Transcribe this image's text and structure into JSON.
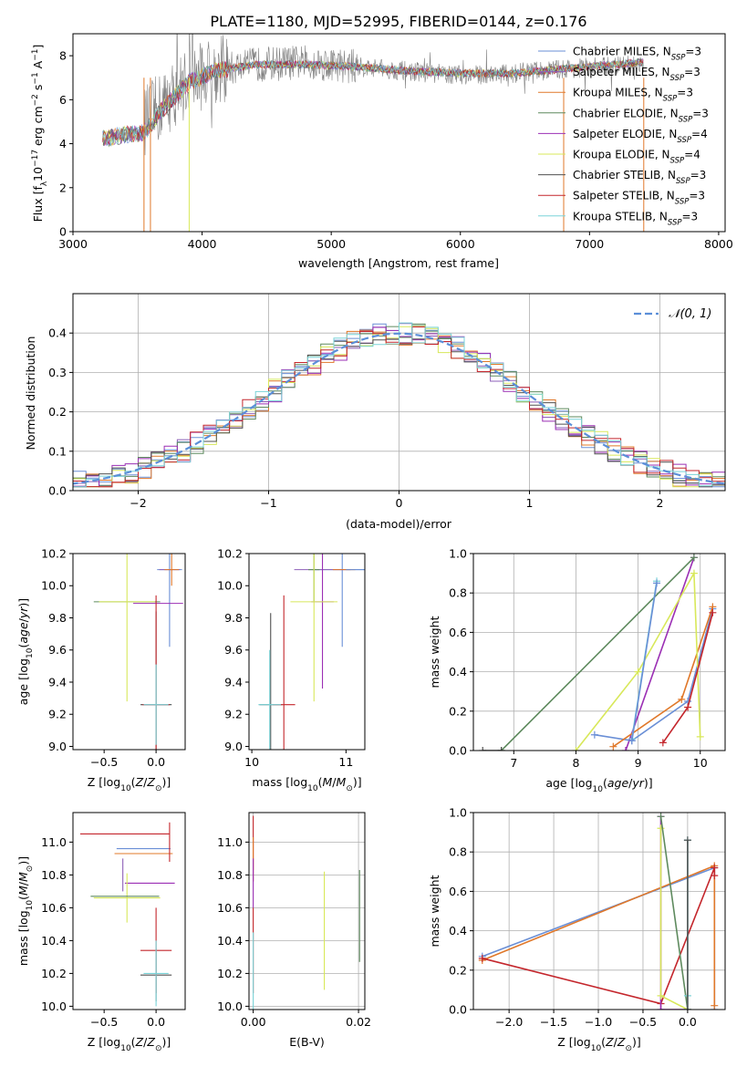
{
  "figure": {
    "title": "PLATE=1180, MJD=52995, FIBERID=0144, z=0.176",
    "fit_names": [
      "Chabrier MILES",
      "Salpeter MILES",
      "Kroupa MILES",
      "Chabrier ELODIE",
      "Salpeter ELODIE",
      "Kroupa ELODIE",
      "Chabrier STELIB",
      "Salpeter STELIB",
      "Kroupa STELIB"
    ],
    "fit_nssp": [
      "3",
      "3",
      "3",
      "3",
      "4",
      "4",
      "3",
      "3",
      "3"
    ],
    "fit_colors": [
      "#6a8fd6",
      "#8e5fb8",
      "#e0782a",
      "#5e8a5e",
      "#9b2fb4",
      "#d8e85a",
      "#505050",
      "#c4262c",
      "#7ad4d8"
    ]
  },
  "chart_data": [
    {
      "type": "line",
      "id": "spectrum",
      "xlabel": "wavelength [Angstrom, rest frame]",
      "ylabel": "Flux [f_λ 10^-17 erg cm^-2 s^-1 A^-1]",
      "xlim": [
        3000,
        8050
      ],
      "ylim": [
        0,
        9
      ],
      "xticks": [
        3000,
        4000,
        5000,
        6000,
        7000,
        8000
      ],
      "yticks": [
        0,
        2,
        4,
        6,
        8
      ],
      "legend_position": "right",
      "data_color": "#808080",
      "data_range": [
        3550,
        7420
      ],
      "data_continuum": [
        [
          3550,
          5.0
        ],
        [
          3700,
          5.8
        ],
        [
          3900,
          6.9
        ],
        [
          4100,
          7.3
        ],
        [
          4400,
          7.6
        ],
        [
          4800,
          7.7
        ],
        [
          5200,
          7.5
        ],
        [
          5600,
          7.3
        ],
        [
          6000,
          7.1
        ],
        [
          6400,
          7.2
        ],
        [
          6800,
          7.4
        ],
        [
          7400,
          7.6
        ]
      ],
      "model_range": [
        3230,
        7420
      ],
      "model_continuum": [
        [
          3230,
          4.2
        ],
        [
          3400,
          4.4
        ],
        [
          3550,
          4.5
        ],
        [
          3700,
          5.6
        ],
        [
          3900,
          6.8
        ],
        [
          4100,
          7.3
        ],
        [
          4400,
          7.6
        ],
        [
          4800,
          7.6
        ],
        [
          5200,
          7.5
        ],
        [
          5600,
          7.3
        ],
        [
          6000,
          7.2
        ],
        [
          6400,
          7.2
        ],
        [
          6800,
          7.4
        ],
        [
          7400,
          7.7
        ]
      ],
      "model_drops": [
        3550,
        3600,
        3900,
        6800,
        7420
      ]
    },
    {
      "type": "step",
      "id": "residuals",
      "xlabel": "(data-model)/error",
      "ylabel": "Normed distribution",
      "xlim": [
        -2.5,
        2.5
      ],
      "ylim": [
        0,
        0.5
      ],
      "xticks": [
        -2,
        -1,
        0,
        1,
        2
      ],
      "yticks": [
        0.0,
        0.1,
        0.2,
        0.3,
        0.4
      ],
      "grid": true,
      "bin_width": 0.1,
      "reference_label": "𝒩(0, 1)",
      "reference_color": "#5b8fd8",
      "legend_position": "top-right"
    },
    {
      "type": "scatter",
      "id": "age_vs_z",
      "xlabel": "Z [log10(Z/Z☉)]",
      "ylabel": "age [log10(age/yr)]",
      "xlim": [
        -0.8,
        0.28
      ],
      "ylim": [
        8.98,
        10.2
      ],
      "xticks": [
        -0.5,
        0.0
      ],
      "yticks": [
        9.0,
        9.2,
        9.4,
        9.6,
        9.8,
        10.0,
        10.2
      ],
      "points": [
        {
          "c": 0,
          "x": 0.13,
          "y": 10.1,
          "xerr": 0.12,
          "yerr": 0.48
        },
        {
          "c": 1,
          "x": 0.13,
          "y": 10.1,
          "xerr": 0.1,
          "yerr": 0.0
        },
        {
          "c": 2,
          "x": 0.15,
          "y": 10.1,
          "xerr": 0.07,
          "yerr": 0.0
        },
        {
          "c": 3,
          "x": -0.28,
          "y": 9.9,
          "xerr": 0.32,
          "yerr": 0.0
        },
        {
          "c": 4,
          "x": 0.02,
          "y": 9.89,
          "xerr": 0.24,
          "yerr": 0.0
        },
        {
          "c": 5,
          "x": -0.28,
          "y": 9.9,
          "xerr": 0.27,
          "yerr": 0.62
        },
        {
          "c": 6,
          "x": 0.0,
          "y": 9.26,
          "xerr": 0.15,
          "yerr": 0.58
        },
        {
          "c": 7,
          "x": 0.0,
          "y": 9.26,
          "xerr": 0.13,
          "yerr": 0.68
        },
        {
          "c": 8,
          "x": 0.0,
          "y": 9.26,
          "xerr": 0.12,
          "yerr": 0.25
        },
        {
          "c": 2,
          "x": 0.15,
          "y": 10.1,
          "xerr": 0.0,
          "yerr": 0.1
        }
      ]
    },
    {
      "type": "scatter",
      "id": "age_vs_mass",
      "xlabel": "mass [log10(M/M☉)]",
      "ylabel": "",
      "xlim": [
        9.97,
        11.2
      ],
      "ylim": [
        8.98,
        10.2
      ],
      "xticks": [
        10,
        11
      ],
      "yticks": [
        9.0,
        9.2,
        9.4,
        9.6,
        9.8,
        10.0,
        10.2
      ],
      "points": [
        {
          "c": 0,
          "x": 10.96,
          "y": 10.1,
          "xerr": 0.3,
          "yerr": 0.48
        },
        {
          "c": 1,
          "x": 10.75,
          "y": 10.1,
          "xerr": 0.3,
          "yerr": 0.0
        },
        {
          "c": 2,
          "x": 10.98,
          "y": 10.1,
          "xerr": 0.12,
          "yerr": 0.0
        },
        {
          "c": 3,
          "x": 10.66,
          "y": 10.1,
          "xerr": 0.06,
          "yerr": 0.2
        },
        {
          "c": 4,
          "x": 10.75,
          "y": 9.9,
          "xerr": 0.12,
          "yerr": 0.54
        },
        {
          "c": 5,
          "x": 10.66,
          "y": 9.9,
          "xerr": 0.25,
          "yerr": 0.62
        },
        {
          "c": 6,
          "x": 10.2,
          "y": 9.26,
          "xerr": 0.12,
          "yerr": 0.57
        },
        {
          "c": 7,
          "x": 10.34,
          "y": 9.26,
          "xerr": 0.12,
          "yerr": 0.68
        },
        {
          "c": 8,
          "x": 10.19,
          "y": 9.26,
          "xerr": 0.12,
          "yerr": 0.34
        },
        {
          "c": 0,
          "x": 11.1,
          "y": 10.1,
          "xerr": 0.1,
          "yerr": 0.0
        }
      ]
    },
    {
      "type": "line",
      "id": "weight_vs_age",
      "xlabel": "age [log10(age/yr)]",
      "ylabel": "mass weight",
      "xlim": [
        6.35,
        10.4
      ],
      "ylim": [
        0,
        1
      ],
      "xticks": [
        7,
        8,
        9,
        10
      ],
      "yticks": [
        0.0,
        0.2,
        0.4,
        0.6,
        0.8,
        1.0
      ],
      "grid": true,
      "series": [
        {
          "c": 0,
          "x": [
            8.3,
            8.9,
            9.8,
            10.2
          ],
          "y": [
            0.08,
            0.05,
            0.25,
            0.72
          ]
        },
        {
          "c": 4,
          "x": [
            8.8,
            9.9
          ],
          "y": [
            0.0,
            0.98
          ]
        },
        {
          "c": 2,
          "x": [
            8.6,
            9.7,
            10.2
          ],
          "y": [
            0.02,
            0.26,
            0.73
          ]
        },
        {
          "c": 5,
          "x": [
            8.0,
            9.0,
            9.9,
            10.0
          ],
          "y": [
            0.0,
            0.4,
            0.9,
            0.07
          ]
        },
        {
          "c": 3,
          "x": [
            6.8,
            9.9
          ],
          "y": [
            0.0,
            0.98
          ]
        },
        {
          "c": 6,
          "x": [
            6.5,
            6.8
          ],
          "y": [
            0.0,
            0.0
          ]
        },
        {
          "c": 8,
          "x": [
            8.9,
            9.3
          ],
          "y": [
            0.06,
            0.86
          ]
        },
        {
          "c": 0,
          "x": [
            8.9,
            9.3
          ],
          "y": [
            0.05,
            0.85
          ]
        },
        {
          "c": 7,
          "x": [
            9.4,
            9.8,
            10.2
          ],
          "y": [
            0.04,
            0.22,
            0.7
          ]
        }
      ]
    },
    {
      "type": "scatter",
      "id": "mass_vs_z",
      "xlabel": "Z [log10(Z/Z☉)]",
      "ylabel": "mass [log10(M/M☉)]",
      "xlim": [
        -0.8,
        0.28
      ],
      "ylim": [
        9.98,
        11.18
      ],
      "xticks": [
        -0.5,
        0.0
      ],
      "yticks": [
        10.0,
        10.2,
        10.4,
        10.6,
        10.8,
        11.0
      ],
      "points": [
        {
          "c": 7,
          "x": -0.3,
          "y": 11.05,
          "xerr": 0.43,
          "yerr": 0.0
        },
        {
          "c": 0,
          "x": -0.12,
          "y": 10.96,
          "xerr": 0.26,
          "yerr": 0.0
        },
        {
          "c": 2,
          "x": -0.12,
          "y": 10.93,
          "xerr": 0.28,
          "yerr": 0.0
        },
        {
          "c": 4,
          "x": -0.06,
          "y": 10.75,
          "xerr": 0.24,
          "yerr": 0.0
        },
        {
          "c": 5,
          "x": -0.28,
          "y": 10.66,
          "xerr": 0.32,
          "yerr": 0.15
        },
        {
          "c": 3,
          "x": -0.3,
          "y": 10.67,
          "xerr": 0.33,
          "yerr": 0.0
        },
        {
          "c": 1,
          "x": -0.32,
          "y": 10.8,
          "xerr": 0.0,
          "yerr": 0.1
        },
        {
          "c": 6,
          "x": 0.0,
          "y": 10.19,
          "xerr": 0.15,
          "yerr": 0.16
        },
        {
          "c": 7,
          "x": 0.0,
          "y": 10.34,
          "xerr": 0.15,
          "yerr": 0.26
        },
        {
          "c": 8,
          "x": 0.0,
          "y": 10.2,
          "xerr": 0.12,
          "yerr": 0.2
        },
        {
          "c": 7,
          "x": 0.13,
          "y": 11.0,
          "xerr": 0.0,
          "yerr": 0.12
        }
      ]
    },
    {
      "type": "scatter",
      "id": "mass_vs_ebv",
      "xlabel": "E(B-V)",
      "ylabel": "",
      "xlim": [
        -0.0008,
        0.0212
      ],
      "ylim": [
        9.98,
        11.18
      ],
      "xticks": [
        0.0,
        0.02
      ],
      "yticks": [
        10.0,
        10.2,
        10.4,
        10.6,
        10.8,
        11.0
      ],
      "grid": true,
      "points": [
        {
          "c": 7,
          "x": 0.0,
          "y": 10.96,
          "xerr": 0.0,
          "yerr": 0.2
        },
        {
          "c": 2,
          "x": 0.0,
          "y": 10.93,
          "xerr": 0.0,
          "yerr": 0.1
        },
        {
          "c": 4,
          "x": 0.0,
          "y": 10.75,
          "xerr": 0.0,
          "yerr": 0.15
        },
        {
          "c": 7,
          "x": 0.0,
          "y": 10.34,
          "xerr": 0.0,
          "yerr": 0.26
        },
        {
          "c": 8,
          "x": 0.0,
          "y": 10.2,
          "xerr": 0.0,
          "yerr": 0.25
        },
        {
          "c": 5,
          "x": 0.0135,
          "y": 10.46,
          "xerr": 0.0,
          "yerr": 0.36
        },
        {
          "c": 3,
          "x": 0.0202,
          "y": 10.55,
          "xerr": 0.0,
          "yerr": 0.28
        }
      ]
    },
    {
      "type": "line",
      "id": "weight_vs_z",
      "xlabel": "Z [log10(Z/Z☉)]",
      "ylabel": "mass weight",
      "xlim": [
        -2.4,
        0.42
      ],
      "ylim": [
        0,
        1
      ],
      "xticks": [
        -2.0,
        -1.5,
        -1.0,
        -0.5,
        0.0
      ],
      "yticks": [
        0.0,
        0.2,
        0.4,
        0.6,
        0.8,
        1.0
      ],
      "grid": true,
      "series": [
        {
          "c": 0,
          "x": [
            -2.3,
            0.3,
            0.3
          ],
          "y": [
            0.27,
            0.72,
            0.0
          ]
        },
        {
          "c": 2,
          "x": [
            -2.3,
            0.3,
            0.3
          ],
          "y": [
            0.25,
            0.73,
            0.02
          ]
        },
        {
          "c": 7,
          "x": [
            -2.3,
            -0.3,
            0.3,
            0.3
          ],
          "y": [
            0.26,
            0.03,
            0.72,
            0.68
          ]
        },
        {
          "c": 4,
          "x": [
            -0.3,
            -0.3,
            0.0
          ],
          "y": [
            0.98,
            0.0,
            0.0
          ]
        },
        {
          "c": 5,
          "x": [
            -0.3,
            -0.3,
            0.0
          ],
          "y": [
            0.92,
            0.07,
            0.0
          ]
        },
        {
          "c": 3,
          "x": [
            -0.3,
            0.0
          ],
          "y": [
            0.98,
            0.0
          ]
        },
        {
          "c": 8,
          "x": [
            0.0,
            0.0,
            0.0
          ],
          "y": [
            0.86,
            0.07,
            0.0
          ]
        },
        {
          "c": 6,
          "x": [
            0.0,
            0.0
          ],
          "y": [
            0.86,
            0.0
          ]
        }
      ]
    }
  ]
}
